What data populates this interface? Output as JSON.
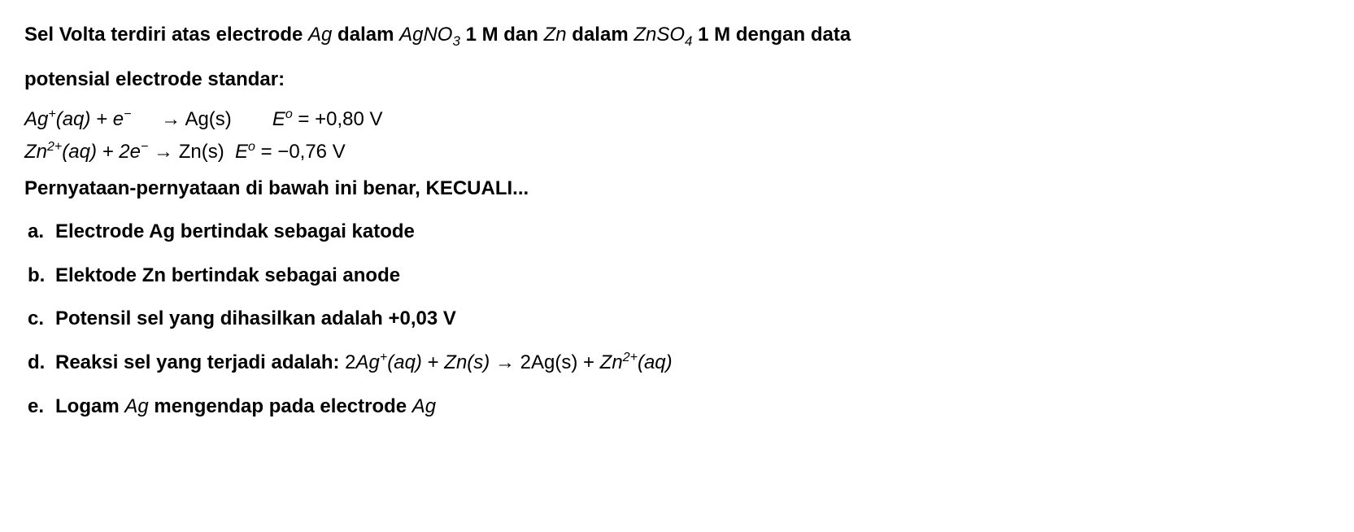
{
  "question": {
    "part1": "Sel Volta terdiri atas electrode ",
    "ag": "Ag",
    "part2": " dalam ",
    "agno3": "AgNO",
    "agno3_sub": "3",
    "part3": " 1 M dan ",
    "zn": "Zn",
    "part4": " dalam ",
    "znso4": "ZnSO",
    "znso4_sub": "4",
    "part5": " 1 M dengan data",
    "line2": "potensial electrode standar:"
  },
  "eq1": {
    "ag": "Ag",
    "plus": "+",
    "aq": "(aq)",
    "plus_e": " + e",
    "minus": "−",
    "arrow": " → ",
    "ag_s": "Ag(s)",
    "E": "E",
    "o": "o",
    "eq": " = +0,80 V"
  },
  "eq2": {
    "zn": "Zn",
    "two_plus": "2+",
    "aq": "(aq)",
    "plus_2e": " + 2e",
    "minus": "−",
    "arrow": " → ",
    "zn_s": "Zn(s)",
    "E": "E",
    "o": "o",
    "eq": " = −0,76 V"
  },
  "statement": "Pernyataan-pernyataan di bawah ini benar, KECUALI...",
  "options": {
    "a": {
      "letter": "a.",
      "text": "Electrode Ag bertindak sebagai katode"
    },
    "b": {
      "letter": "b.",
      "text": "Elektode Zn bertindak sebagai anode"
    },
    "c": {
      "letter": "c.",
      "text": "Potensil sel yang dihasilkan adalah +0,03 V"
    },
    "d": {
      "letter": "d.",
      "prefix": "Reaksi sel yang terjadi adalah: ",
      "two": "2",
      "ag": "Ag",
      "plus": "+",
      "aq1": "(aq)",
      "plus_sign": " + ",
      "zn": "Zn",
      "s1": "(s)",
      "arrow": " → ",
      "two_ag": "2Ag(s)",
      "plus_sign2": " + ",
      "zn2": "Zn",
      "two_plus": "2+",
      "aq2": "(aq)"
    },
    "e": {
      "letter": "e.",
      "prefix": "Logam ",
      "ag": "Ag",
      "middle": " mengendap pada electrode ",
      "ag2": "Ag"
    }
  }
}
